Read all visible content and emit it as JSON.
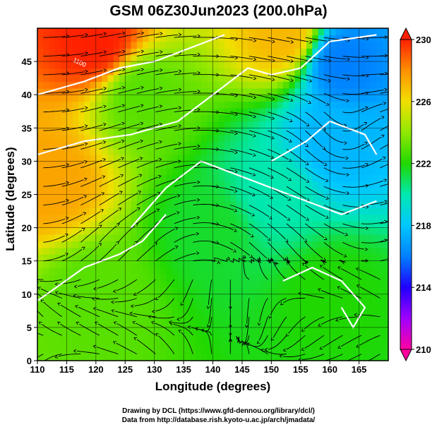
{
  "title": "GSM 06Z30Jun2023 (200.0hPa)",
  "axes": {
    "xlabel": "Longitude (degrees)",
    "ylabel": "Latitude  (degrees)",
    "x_ticks": [
      "110",
      "115",
      "120",
      "125",
      "130",
      "135",
      "140",
      "145",
      "150",
      "155",
      "160",
      "165"
    ],
    "y_ticks": [
      "0",
      "5",
      "10",
      "15",
      "20",
      "25",
      "30",
      "35",
      "40",
      "45"
    ]
  },
  "colorbar": {
    "labels": [
      "230",
      "226",
      "222",
      "218",
      "214",
      "210"
    ],
    "colors": [
      "#ff00a0",
      "#a000ff",
      "#2000ff",
      "#0080ff",
      "#00c8ff",
      "#00e8b0",
      "#20d800",
      "#90e800",
      "#f0e000",
      "#ff9000",
      "#ff2000"
    ]
  },
  "credits": [
    "Drawing by DCL (https://www.gfd-dennou.org/library/dcl/)",
    "Data from http://database.rish.kyoto-u.ac.jp/arch/jmadata/"
  ],
  "chart_data": {
    "type": "heatmap",
    "title": "GSM 06Z30Jun2023 (200.0hPa)",
    "xlabel": "Longitude (degrees)",
    "ylabel": "Latitude  (degrees)",
    "xlim": [
      110,
      170
    ],
    "ylim": [
      0,
      50
    ],
    "value_range": [
      210,
      230
    ],
    "colorbar_ticks": [
      210,
      214,
      218,
      222,
      226,
      230
    ],
    "contour_labels": [
      "1100"
    ],
    "grid": true,
    "field_anchors": [
      {
        "lon": 120,
        "lat": 48,
        "value": 230
      },
      {
        "lon": 112,
        "lat": 27,
        "value": 227.5
      },
      {
        "lon": 128,
        "lat": 40,
        "value": 223
      },
      {
        "lon": 162,
        "lat": 45,
        "value": 216
      },
      {
        "lon": 161,
        "lat": 33,
        "value": 217.5
      },
      {
        "lon": 150,
        "lat": 25,
        "value": 220
      },
      {
        "lon": 140,
        "lat": 20,
        "value": 221.5
      },
      {
        "lon": 160,
        "lat": 10,
        "value": 222
      },
      {
        "lon": 120,
        "lat": 10,
        "value": 223
      },
      {
        "lon": 152,
        "lat": 49,
        "value": 227
      }
    ]
  }
}
